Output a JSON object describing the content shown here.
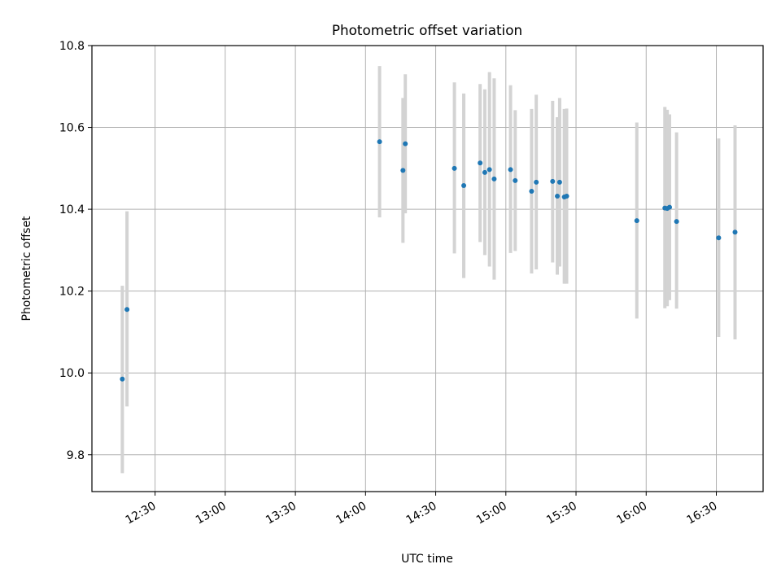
{
  "chart_data": {
    "type": "scatter",
    "title": "Photometric offset variation",
    "xlabel": "UTC time",
    "ylabel": "Photometric offset",
    "x_tick_labels": [
      "12:30",
      "13:00",
      "13:30",
      "14:00",
      "14:30",
      "15:00",
      "15:30",
      "16:00",
      "16:30"
    ],
    "y_tick_labels": [
      "9.8",
      "10.0",
      "10.2",
      "10.4",
      "10.6",
      "10.8"
    ],
    "x_ticks": [
      "12:30",
      "13:00",
      "13:30",
      "14:00",
      "14:30",
      "15:00",
      "15:30",
      "16:00",
      "16:30"
    ],
    "y_ticks": [
      9.8,
      10.0,
      10.2,
      10.4,
      10.6,
      10.8
    ],
    "xlim": [
      "12:03",
      "16:50"
    ],
    "ylim": [
      9.71,
      10.8
    ],
    "grid": true,
    "marker_color": "#1f77b4",
    "errorbar_color": "#d3d3d3",
    "points": [
      {
        "x": "12:16",
        "y": 9.985,
        "ylow": 9.755,
        "yhigh": 10.213
      },
      {
        "x": "12:18",
        "y": 10.155,
        "ylow": 9.918,
        "yhigh": 10.395
      },
      {
        "x": "14:06",
        "y": 10.565,
        "ylow": 10.38,
        "yhigh": 10.75
      },
      {
        "x": "14:16",
        "y": 10.495,
        "ylow": 10.318,
        "yhigh": 10.672
      },
      {
        "x": "14:17",
        "y": 10.56,
        "ylow": 10.39,
        "yhigh": 10.73
      },
      {
        "x": "14:38",
        "y": 10.5,
        "ylow": 10.292,
        "yhigh": 10.71
      },
      {
        "x": "14:42",
        "y": 10.458,
        "ylow": 10.232,
        "yhigh": 10.683
      },
      {
        "x": "14:49",
        "y": 10.513,
        "ylow": 10.32,
        "yhigh": 10.706
      },
      {
        "x": "14:51",
        "y": 10.49,
        "ylow": 10.288,
        "yhigh": 10.693
      },
      {
        "x": "14:53",
        "y": 10.497,
        "ylow": 10.26,
        "yhigh": 10.735
      },
      {
        "x": "14:55",
        "y": 10.474,
        "ylow": 10.228,
        "yhigh": 10.72
      },
      {
        "x": "15:02",
        "y": 10.497,
        "ylow": 10.293,
        "yhigh": 10.703
      },
      {
        "x": "15:04",
        "y": 10.47,
        "ylow": 10.298,
        "yhigh": 10.642
      },
      {
        "x": "15:11",
        "y": 10.444,
        "ylow": 10.243,
        "yhigh": 10.645
      },
      {
        "x": "15:13",
        "y": 10.466,
        "ylow": 10.253,
        "yhigh": 10.68
      },
      {
        "x": "15:20",
        "y": 10.468,
        "ylow": 10.27,
        "yhigh": 10.665
      },
      {
        "x": "15:22",
        "y": 10.432,
        "ylow": 10.24,
        "yhigh": 10.625
      },
      {
        "x": "15:23",
        "y": 10.466,
        "ylow": 10.26,
        "yhigh": 10.672
      },
      {
        "x": "15:25",
        "y": 10.43,
        "ylow": 10.218,
        "yhigh": 10.645
      },
      {
        "x": "15:26",
        "y": 10.432,
        "ylow": 10.218,
        "yhigh": 10.646
      },
      {
        "x": "15:56",
        "y": 10.372,
        "ylow": 10.133,
        "yhigh": 10.612
      },
      {
        "x": "16:08",
        "y": 10.403,
        "ylow": 10.158,
        "yhigh": 10.65
      },
      {
        "x": "16:09",
        "y": 10.402,
        "ylow": 10.163,
        "yhigh": 10.643
      },
      {
        "x": "16:10",
        "y": 10.405,
        "ylow": 10.178,
        "yhigh": 10.632
      },
      {
        "x": "16:13",
        "y": 10.37,
        "ylow": 10.157,
        "yhigh": 10.588
      },
      {
        "x": "16:31",
        "y": 10.33,
        "ylow": 10.088,
        "yhigh": 10.573
      },
      {
        "x": "16:38",
        "y": 10.344,
        "ylow": 10.082,
        "yhigh": 10.605
      }
    ]
  }
}
